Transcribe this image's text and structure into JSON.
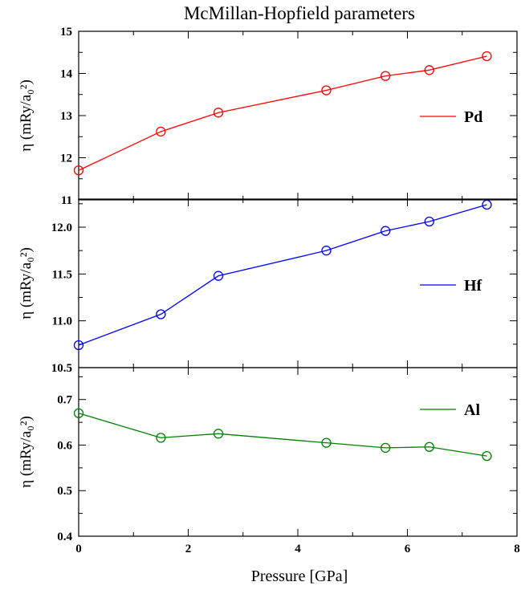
{
  "chart_data": {
    "type": "line",
    "title": "McMillan-Hopfield parameters",
    "xlabel": "Pressure [GPa]",
    "xlim": [
      0,
      8
    ],
    "xticks": [
      0,
      2,
      4,
      6,
      8
    ],
    "x": [
      0,
      1.5,
      2.55,
      4.52,
      5.6,
      6.4,
      7.45
    ],
    "panels": [
      {
        "ylabel": "η (mRy/a₀²)",
        "ylim": [
          11,
          15
        ],
        "yticks": [
          "11",
          "12",
          "13",
          "14",
          "15"
        ],
        "legend_position": "right",
        "series": [
          {
            "name": "Pd",
            "color": "#ff0000",
            "values": [
              11.7,
              12.62,
              13.07,
              13.6,
              13.94,
              14.08,
              14.41
            ]
          }
        ]
      },
      {
        "ylabel": "η (mRy/a₀²)",
        "ylim": [
          10.5,
          12.3
        ],
        "yticks": [
          "10.5",
          "11.0",
          "11.5",
          "12.0"
        ],
        "legend_position": "right",
        "series": [
          {
            "name": "Hf",
            "color": "#0000ff",
            "values": [
              10.74,
              11.07,
              11.48,
              11.75,
              11.96,
              12.06,
              12.24
            ]
          }
        ]
      },
      {
        "ylabel": "η (mRy/a₀²)",
        "ylim": [
          0.4,
          0.77
        ],
        "yticks": [
          "0.4",
          "0.5",
          "0.6",
          "0.7"
        ],
        "legend_position": "top-right",
        "series": [
          {
            "name": "Al",
            "color": "#008000",
            "values": [
              0.67,
              0.616,
              0.625,
              0.605,
              0.594,
              0.596,
              0.576
            ]
          }
        ]
      }
    ]
  }
}
